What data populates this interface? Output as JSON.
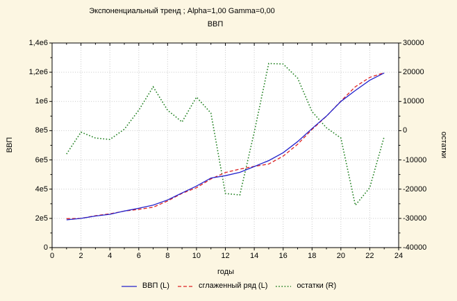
{
  "chart_data": {
    "type": "line",
    "title": "Экспоненциальный тренд ; Alpha=1,00 Gamma=0,00",
    "subtitle": "ВВП",
    "background": "#FCF6E2",
    "plot_background": "#FFFFFF",
    "border_color": "#000000",
    "grid": {
      "show": true,
      "color": "#C6C6C6"
    },
    "legend_position": "bottom",
    "x": [
      1,
      2,
      3,
      4,
      5,
      6,
      7,
      8,
      9,
      10,
      11,
      12,
      13,
      14,
      15,
      16,
      17,
      18,
      19,
      20,
      21,
      22,
      23
    ],
    "series": [
      {
        "id": "vvp",
        "name": "ВВП (L)",
        "axis": "left",
        "line": "solid",
        "color": "#2222CC",
        "values": [
          190000,
          200000,
          216000,
          228000,
          250000,
          269000,
          291000,
          326000,
          374000,
          421000,
          476000,
          492000,
          515000,
          555000,
          595000,
          649000,
          725000,
          815000,
          900000,
          1000000,
          1075000,
          1145000,
          1195000
        ]
      },
      {
        "id": "smoothed",
        "name": "сглаженный ряд (L)",
        "axis": "left",
        "line": "dashed",
        "color": "#DD2222",
        "values": [
          198000,
          200500,
          218500,
          231000,
          249500,
          262000,
          276000,
          319000,
          371000,
          409500,
          470000,
          513500,
          537000,
          555500,
          572000,
          626200,
          707000,
          808500,
          899000,
          1002500,
          1100500,
          1164500,
          1197000
        ]
      },
      {
        "id": "residuals",
        "name": "остатки (R)",
        "axis": "right",
        "line": "dotted",
        "color": "#1E7F1E",
        "values": [
          -8000,
          -500,
          -2500,
          -3000,
          500,
          7000,
          15000,
          7000,
          3000,
          11500,
          6000,
          -21500,
          -22000,
          -500,
          23000,
          22800,
          18000,
          6500,
          1000,
          -2500,
          -25500,
          -19500,
          -2000
        ]
      }
    ],
    "axes": {
      "x": {
        "title": "годы",
        "min": 0,
        "max": 24,
        "minor_step": 1,
        "tick_values": [
          0,
          2,
          4,
          6,
          8,
          10,
          12,
          14,
          16,
          18,
          20,
          22,
          24
        ],
        "tick_labels": [
          "0",
          "2",
          "4",
          "6",
          "8",
          "10",
          "12",
          "14",
          "16",
          "18",
          "20",
          "22",
          "24"
        ]
      },
      "left": {
        "title": "ВВП",
        "min": 0,
        "max": 1400000,
        "minor_step": 100000,
        "tick_values": [
          0,
          200000,
          400000,
          600000,
          800000,
          1000000,
          1200000,
          1400000
        ],
        "tick_labels": [
          "0",
          "2e5",
          "4e5",
          "6e5",
          "8e5",
          "1e6",
          "1,2e6",
          "1,4e6"
        ]
      },
      "right": {
        "title": "остатки",
        "min": -40000,
        "max": 30000,
        "minor_step": 5000,
        "tick_values": [
          -40000,
          -30000,
          -20000,
          -10000,
          0,
          10000,
          20000,
          30000
        ],
        "tick_labels": [
          "-40000",
          "-30000",
          "-20000",
          "-10000",
          "0",
          "10000",
          "20000",
          "30000"
        ]
      }
    }
  }
}
